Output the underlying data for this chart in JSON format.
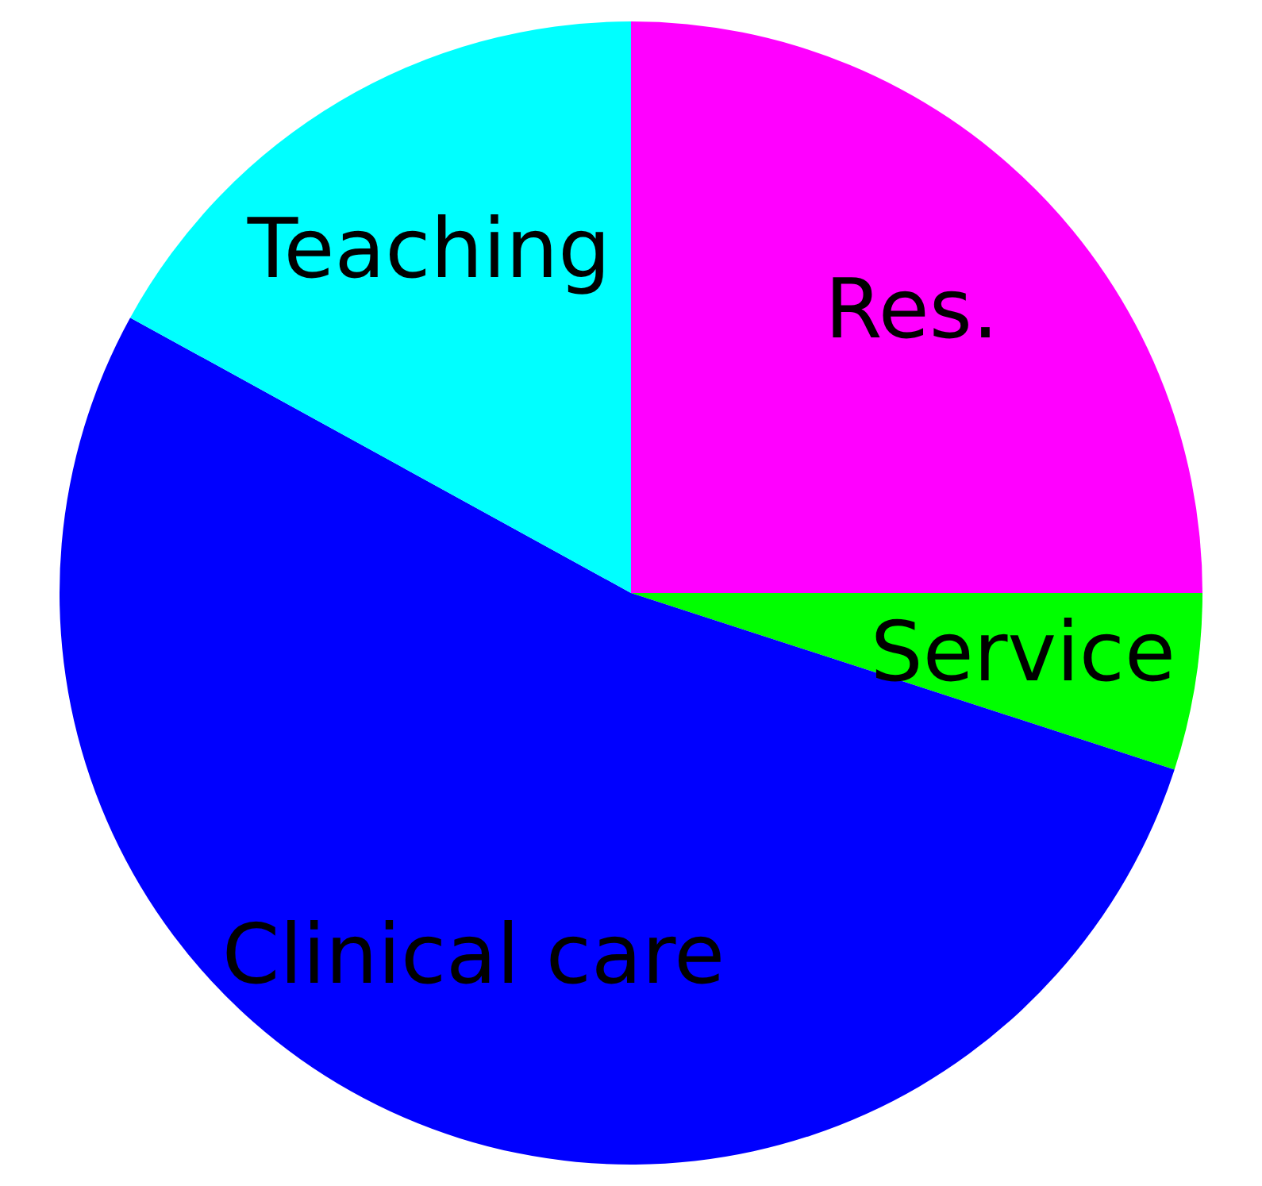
{
  "chart_data": {
    "type": "pie",
    "categories": [
      "Res.",
      "Service",
      "Clinical care",
      "Teaching"
    ],
    "values": [
      25,
      5,
      53,
      17
    ],
    "colors": [
      "#ff00ff",
      "#00ff00",
      "#0000ff",
      "#00ffff"
    ],
    "legend": false
  }
}
